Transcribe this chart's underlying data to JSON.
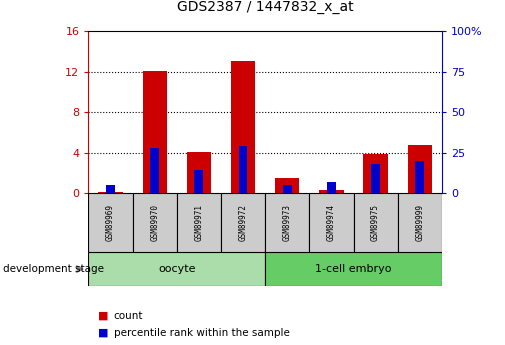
{
  "title": "GDS2387 / 1447832_x_at",
  "samples": [
    "GSM89969",
    "GSM89970",
    "GSM89971",
    "GSM89972",
    "GSM89973",
    "GSM89974",
    "GSM89975",
    "GSM89999"
  ],
  "count_values": [
    0.12,
    12.1,
    4.1,
    13.0,
    1.5,
    0.3,
    3.9,
    4.8
  ],
  "percentile_values": [
    5,
    28,
    14,
    29,
    5,
    7,
    18,
    20
  ],
  "groups": [
    {
      "label": "oocyte",
      "indices": [
        0,
        1,
        2,
        3
      ],
      "color": "#aaddaa"
    },
    {
      "label": "1-cell embryo",
      "indices": [
        4,
        5,
        6,
        7
      ],
      "color": "#66cc66"
    }
  ],
  "ylim_left": [
    0,
    16
  ],
  "ylim_right": [
    0,
    100
  ],
  "yticks_left": [
    0,
    4,
    8,
    12,
    16
  ],
  "yticks_right": [
    0,
    25,
    50,
    75,
    100
  ],
  "bar_color_red": "#cc0000",
  "bar_color_blue": "#0000cc",
  "bar_width": 0.55,
  "blue_bar_width": 0.2,
  "sample_box_color": "#cccccc",
  "legend_items": [
    {
      "label": "count",
      "color": "#cc0000"
    },
    {
      "label": "percentile rank within the sample",
      "color": "#0000cc"
    }
  ],
  "dev_stage_label": "development stage"
}
